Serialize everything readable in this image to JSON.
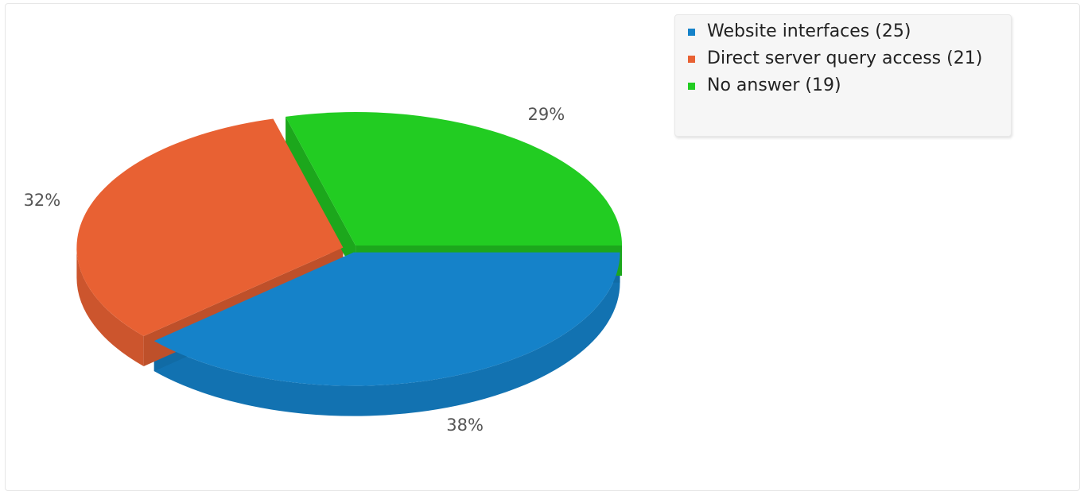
{
  "chart_data": {
    "type": "pie",
    "style": "3d-exploded",
    "slices": [
      {
        "label": "Website interfaces",
        "value": 25,
        "percent": "38%",
        "color": "#1582c9"
      },
      {
        "label": "Direct server query access",
        "value": 21,
        "percent": "32%",
        "color": "#e86133"
      },
      {
        "label": "No answer",
        "value": 19,
        "percent": "29%",
        "color": "#22cc22"
      }
    ],
    "legend_position": "top-right"
  },
  "legend": {
    "items": [
      {
        "text": "Website interfaces (25)",
        "color": "#1582c9"
      },
      {
        "text": "Direct server query access (21)",
        "color": "#e86133"
      },
      {
        "text": "No answer (19)",
        "color": "#22cc22"
      }
    ]
  }
}
